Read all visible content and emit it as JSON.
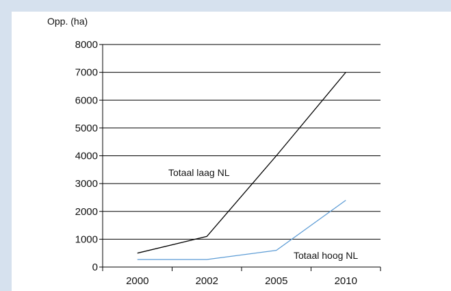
{
  "chart_data": {
    "type": "line",
    "title": "",
    "ylabel": "Opp. (ha)",
    "xlabel": "",
    "categories": [
      "2000",
      "2002",
      "2005",
      "2010"
    ],
    "ylim": [
      0,
      8000
    ],
    "yticks": [
      0,
      1000,
      2000,
      3000,
      4000,
      5000,
      6000,
      7000,
      8000
    ],
    "grid": true,
    "legend": "none",
    "series": [
      {
        "name": "Totaal laag NL",
        "values": [
          500,
          1100,
          4000,
          7000
        ],
        "color": "#000000"
      },
      {
        "name": "Totaal hoog NL",
        "values": [
          270,
          270,
          600,
          2400
        ],
        "color": "#5b9bd5"
      }
    ]
  },
  "colors": {
    "page_background": "#d6e1ee",
    "plot_background": "#ffffff",
    "gridline": "#000000"
  }
}
